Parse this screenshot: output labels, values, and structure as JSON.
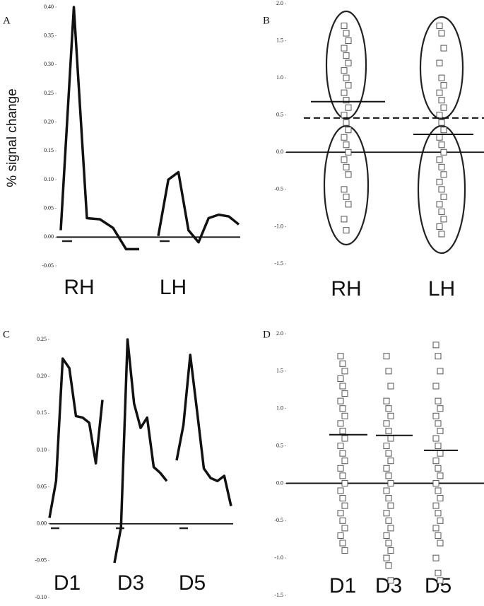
{
  "chart_data": [
    {
      "label": "A",
      "type": "line",
      "ylabel": "% signal change",
      "color": "#111111",
      "categories": [
        "RH",
        "LH"
      ],
      "values": [
        [
          0.012,
          0.4,
          0.033,
          0.031,
          0.016,
          -0.021,
          -0.021
        ],
        [
          0.002,
          0.1,
          0.113,
          0.012,
          -0.009,
          0.033,
          0.039,
          0.036,
          0.022
        ]
      ],
      "ylim": [
        -0.05,
        0.4
      ],
      "yticks": [
        {
          "value": -0.05,
          "label": "-0.05"
        },
        {
          "value": 0,
          "label": "0.00"
        },
        {
          "value": 0.05,
          "label": "0.05"
        },
        {
          "value": 0.1,
          "label": "0.10"
        },
        {
          "value": 0.15,
          "label": "0.15"
        },
        {
          "value": 0.2,
          "label": "0.20"
        },
        {
          "value": 0.25,
          "label": "0.25"
        },
        {
          "value": 0.3,
          "label": "0.30"
        },
        {
          "value": 0.35,
          "label": "0.35"
        },
        {
          "value": 0.4,
          "label": "0.40"
        }
      ]
    },
    {
      "label": "B",
      "type": "strip",
      "color": "#555555",
      "categories": [
        "RH",
        "LH"
      ],
      "values": [
        [
          1.7,
          1.6,
          1.5,
          1.4,
          1.3,
          1.2,
          1.1,
          1.0,
          0.9,
          0.8,
          0.7,
          0.6,
          0.5,
          0.4,
          0.3,
          0.2,
          0.1,
          0.0,
          -0.1,
          -0.2,
          -0.3,
          -0.5,
          -0.6,
          -0.7,
          -0.9,
          -1.05
        ],
        [
          1.7,
          1.6,
          1.4,
          1.2,
          1.0,
          0.9,
          0.8,
          0.7,
          0.6,
          0.5,
          0.4,
          0.3,
          0.2,
          0.1,
          0.0,
          -0.1,
          -0.2,
          -0.3,
          -0.4,
          -0.5,
          -0.6,
          -0.7,
          -0.8,
          -0.9,
          -1.0,
          -1.1
        ]
      ],
      "means": [
        0.68,
        0.24
      ],
      "dashed_line": 0.46,
      "ylim": [
        -1.5,
        2.0
      ],
      "yticks": [
        {
          "value": -1.5,
          "label": "-1.5"
        },
        {
          "value": -1,
          "label": "-1.0"
        },
        {
          "value": -0.5,
          "label": "-0.5"
        },
        {
          "value": 0,
          "label": "0.0"
        },
        {
          "value": 0.5,
          "label": "0.5"
        },
        {
          "value": 1,
          "label": "1.0"
        },
        {
          "value": 1.5,
          "label": "1.5"
        },
        {
          "value": 2,
          "label": "2.0"
        }
      ]
    },
    {
      "label": "C",
      "type": "line",
      "color": "#111111",
      "categories": [
        "D1",
        "D3",
        "D5"
      ],
      "values": [
        [
          0.008,
          0.058,
          0.224,
          0.211,
          0.146,
          0.144,
          0.137,
          0.082,
          0.168
        ],
        [
          -0.053,
          -0.005,
          0.25,
          0.163,
          0.13,
          0.144,
          0.077,
          0.069,
          0.058
        ],
        [
          0.086,
          0.134,
          0.229,
          0.153,
          0.075,
          0.062,
          0.058,
          0.065,
          0.024
        ]
      ],
      "ylim": [
        -0.1,
        0.25
      ],
      "yticks": [
        {
          "value": -0.1,
          "label": "-0.10"
        },
        {
          "value": -0.05,
          "label": "-0.05"
        },
        {
          "value": 0,
          "label": "0.00"
        },
        {
          "value": 0.05,
          "label": "0.05"
        },
        {
          "value": 0.1,
          "label": "0.10"
        },
        {
          "value": 0.15,
          "label": "0.15"
        },
        {
          "value": 0.2,
          "label": "0.20"
        },
        {
          "value": 0.25,
          "label": "0.25"
        }
      ]
    },
    {
      "label": "D",
      "type": "strip",
      "color": "#555555",
      "categories": [
        "D1",
        "D3",
        "D5"
      ],
      "values": [
        [
          1.7,
          1.6,
          1.5,
          1.4,
          1.3,
          1.2,
          1.1,
          1.0,
          0.9,
          0.8,
          0.7,
          0.6,
          0.5,
          0.4,
          0.3,
          0.2,
          0.1,
          0.0,
          -0.1,
          -0.2,
          -0.3,
          -0.4,
          -0.5,
          -0.6,
          -0.7,
          -0.8,
          -0.9
        ],
        [
          1.7,
          1.5,
          1.3,
          1.1,
          1.0,
          0.9,
          0.8,
          0.7,
          0.6,
          0.5,
          0.4,
          0.3,
          0.2,
          0.1,
          0.0,
          -0.1,
          -0.2,
          -0.3,
          -0.4,
          -0.5,
          -0.6,
          -0.7,
          -0.8,
          -0.9,
          -1.0,
          -1.1,
          -1.3
        ],
        [
          1.85,
          1.7,
          1.5,
          1.3,
          1.1,
          1.0,
          0.9,
          0.8,
          0.7,
          0.6,
          0.5,
          0.4,
          0.3,
          0.2,
          0.1,
          0.0,
          -0.1,
          -0.2,
          -0.3,
          -0.4,
          -0.5,
          -0.6,
          -0.7,
          -0.8,
          -1.0,
          -1.2,
          -1.3
        ]
      ],
      "means": [
        0.65,
        0.64,
        0.44
      ],
      "ylim": [
        -1.5,
        2.0
      ],
      "yticks": [
        {
          "value": -1.5,
          "label": "-1.5"
        },
        {
          "value": -1,
          "label": "-1.0"
        },
        {
          "value": -0.5,
          "label": "-0.5"
        },
        {
          "value": 0,
          "label": "0.0"
        },
        {
          "value": 0.5,
          "label": "0.5"
        },
        {
          "value": 1,
          "label": "1.0"
        },
        {
          "value": 1.5,
          "label": "1.5"
        },
        {
          "value": 2,
          "label": "2.0"
        }
      ]
    }
  ]
}
